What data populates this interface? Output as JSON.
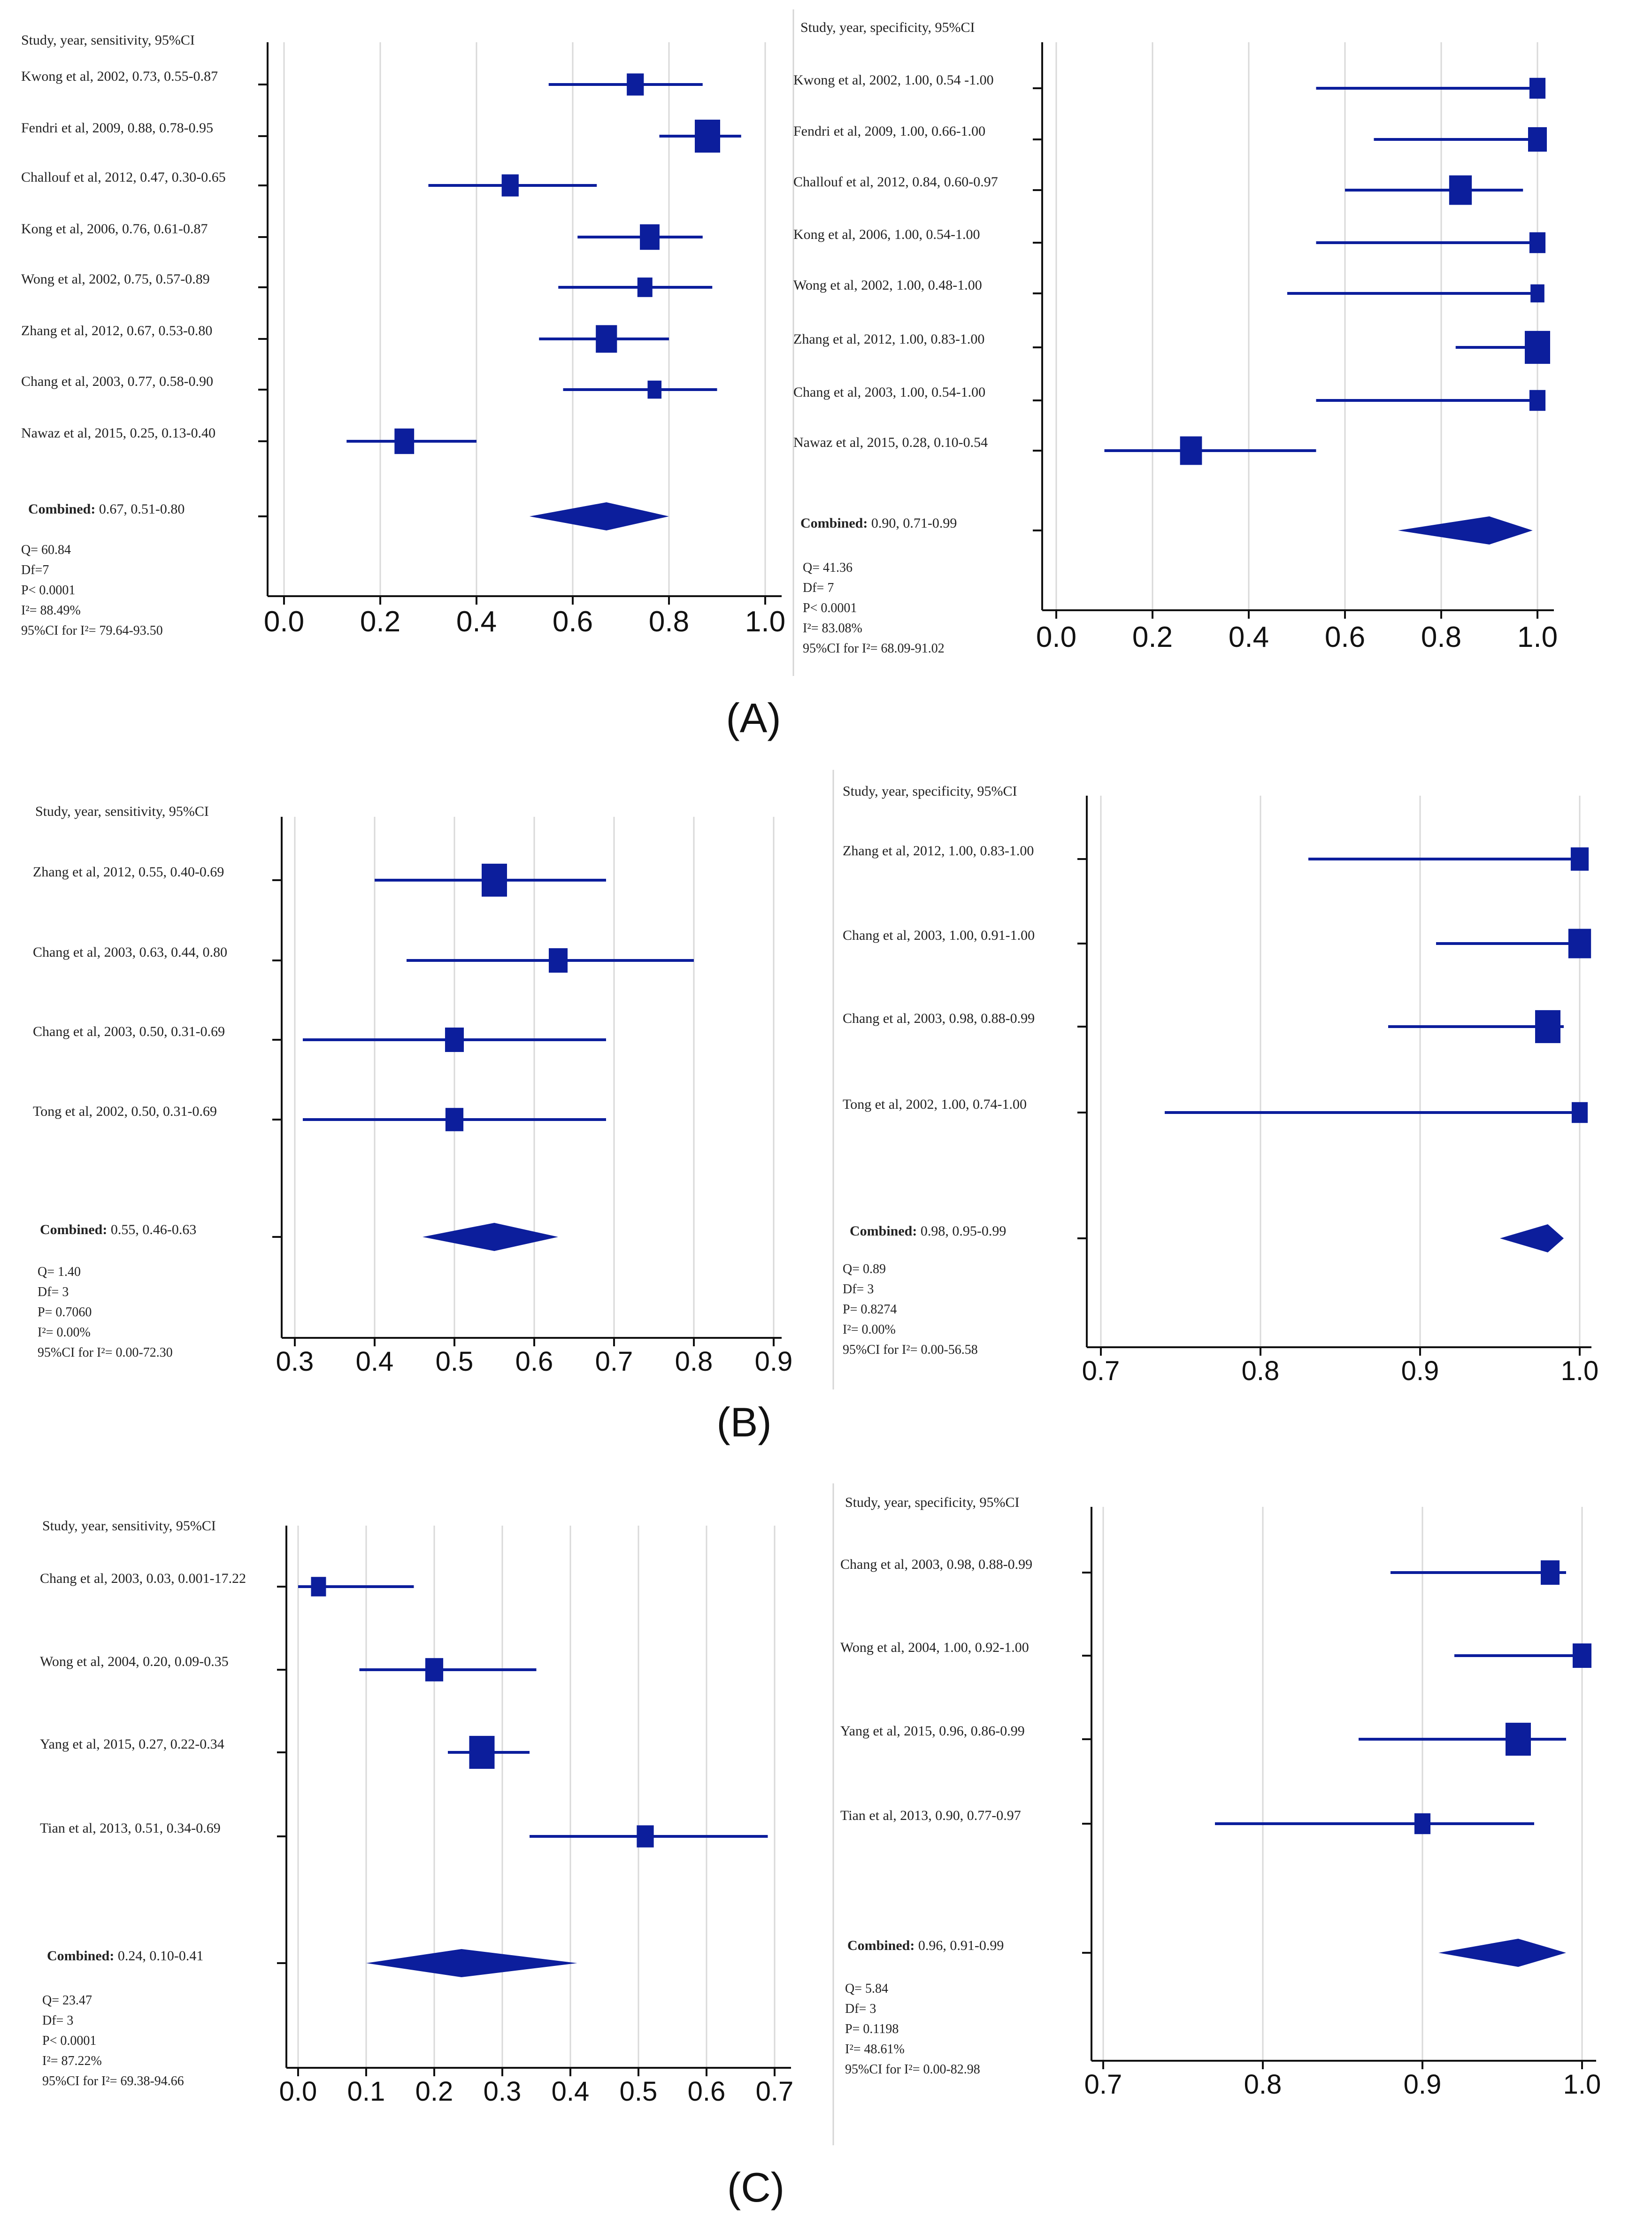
{
  "colors": {
    "mark": "#0c1e9c",
    "axis": "#111111",
    "grid": "#d9d9d9",
    "sep": "#d5d5d5",
    "text": "#222222"
  },
  "captions": [
    "(A)",
    "(B)",
    "(C)"
  ],
  "chart_data": [
    {
      "panel": "A",
      "side": "left",
      "type": "forest",
      "title": "Study, year, sensitivity, 95%CI",
      "xlim": [
        0.0,
        1.0
      ],
      "xticks": [
        0.0,
        0.2,
        0.4,
        0.6,
        0.8,
        1.0
      ],
      "xtick_labels": [
        "0.0",
        "0.2",
        "0.4",
        "0.6",
        "0.8",
        "1.0"
      ],
      "studies": [
        {
          "label": "Kwong et al, 2002, 0.73, 0.55-0.87",
          "est": 0.73,
          "lo": 0.55,
          "hi": 0.87,
          "weight": 0.45
        },
        {
          "label": "Fendri et al, 2009, 0.88, 0.78-0.95",
          "est": 0.88,
          "lo": 0.78,
          "hi": 0.95,
          "weight": 1.0
        },
        {
          "label": "Challouf et al, 2012, 0.47, 0.30-0.65",
          "est": 0.47,
          "lo": 0.3,
          "hi": 0.65,
          "weight": 0.45
        },
        {
          "label": "Kong et al, 2006, 0.76, 0.61-0.87",
          "est": 0.76,
          "lo": 0.61,
          "hi": 0.87,
          "weight": 0.6
        },
        {
          "label": "Wong et al, 2002, 0.75, 0.57-0.89",
          "est": 0.75,
          "lo": 0.57,
          "hi": 0.89,
          "weight": 0.35
        },
        {
          "label": "Zhang et al, 2012, 0.67, 0.53-0.80",
          "est": 0.67,
          "lo": 0.53,
          "hi": 0.8,
          "weight": 0.7
        },
        {
          "label": "Chang et al, 2003, 0.77, 0.58-0.90",
          "est": 0.77,
          "lo": 0.58,
          "hi": 0.9,
          "weight": 0.3
        },
        {
          "label": "Nawaz et al, 2015, 0.25, 0.13-0.40",
          "est": 0.25,
          "lo": 0.13,
          "hi": 0.4,
          "weight": 0.6
        }
      ],
      "combined": {
        "label_bold": "Combined:",
        "label_rest": " 0.67, 0.51-0.80",
        "est": 0.67,
        "lo": 0.51,
        "hi": 0.8
      },
      "stats": [
        "Q= 60.84",
        "Df=7",
        "P< 0.0001",
        "I²= 88.49%",
        "95%CI for I²= 79.64-93.50"
      ]
    },
    {
      "panel": "A",
      "side": "right",
      "type": "forest",
      "title": "Study, year, specificity, 95%CI",
      "xlim": [
        0.0,
        1.0
      ],
      "xticks": [
        0.0,
        0.2,
        0.4,
        0.6,
        0.8,
        1.0
      ],
      "xtick_labels": [
        "0.0",
        "0.2",
        "0.4",
        "0.6",
        "0.8",
        "1.0"
      ],
      "studies": [
        {
          "label": "Kwong et al, 2002, 1.00, 0.54 -1.00",
          "est": 1.0,
          "lo": 0.54,
          "hi": 1.0,
          "weight": 0.4
        },
        {
          "label": "Fendri et al, 2009, 1.00, 0.66-1.00",
          "est": 1.0,
          "lo": 0.66,
          "hi": 1.0,
          "weight": 0.55
        },
        {
          "label": "Challouf et al, 2012, 0.84, 0.60-0.97",
          "est": 0.84,
          "lo": 0.6,
          "hi": 0.97,
          "weight": 0.8
        },
        {
          "label": "Kong et al, 2006, 1.00, 0.54-1.00",
          "est": 1.0,
          "lo": 0.54,
          "hi": 1.0,
          "weight": 0.4
        },
        {
          "label": "Wong et al, 2002, 1.00, 0.48-1.00",
          "est": 1.0,
          "lo": 0.48,
          "hi": 1.0,
          "weight": 0.3
        },
        {
          "label": "Zhang et al, 2012, 1.00, 0.83-1.00",
          "est": 1.0,
          "lo": 0.83,
          "hi": 1.0,
          "weight": 1.0
        },
        {
          "label": "Chang et al, 2003, 1.00, 0.54-1.00",
          "est": 1.0,
          "lo": 0.54,
          "hi": 1.0,
          "weight": 0.4
        },
        {
          "label": "Nawaz et al, 2015, 0.28, 0.10-0.54",
          "est": 0.28,
          "lo": 0.1,
          "hi": 0.54,
          "weight": 0.75
        }
      ],
      "combined": {
        "label_bold": "Combined:",
        "label_rest": " 0.90, 0.71-0.99",
        "est": 0.9,
        "lo": 0.71,
        "hi": 0.99
      },
      "stats": [
        "Q= 41.36",
        "Df= 7",
        "P< 0.0001",
        "I²= 83.08%",
        "95%CI for I²= 68.09-91.02"
      ]
    },
    {
      "panel": "B",
      "side": "left",
      "type": "forest",
      "title": "Study, year, sensitivity, 95%CI",
      "xlim": [
        0.3,
        0.9
      ],
      "xticks": [
        0.3,
        0.4,
        0.5,
        0.6,
        0.7,
        0.8,
        0.9
      ],
      "xtick_labels": [
        "0.3",
        "0.4",
        "0.5",
        "0.6",
        "0.7",
        "0.8",
        "0.9"
      ],
      "studies": [
        {
          "label": "Zhang et al, 2012, 0.55, 0.40-0.69",
          "est": 0.55,
          "lo": 0.4,
          "hi": 0.69,
          "weight": 1.0
        },
        {
          "label": "Chang et al, 2003, 0.63, 0.44, 0.80",
          "est": 0.63,
          "lo": 0.44,
          "hi": 0.8,
          "weight": 0.55
        },
        {
          "label": "Chang et al, 2003, 0.50, 0.31-0.69",
          "est": 0.5,
          "lo": 0.31,
          "hi": 0.69,
          "weight": 0.55
        },
        {
          "label": "Tong et al, 2002, 0.50, 0.31-0.69",
          "est": 0.5,
          "lo": 0.31,
          "hi": 0.69,
          "weight": 0.5
        }
      ],
      "combined": {
        "label_bold": "Combined:",
        "label_rest": " 0.55, 0.46-0.63",
        "est": 0.55,
        "lo": 0.46,
        "hi": 0.63
      },
      "stats": [
        "Q= 1.40",
        "Df= 3",
        "P= 0.7060",
        "I²= 0.00%",
        "95%CI for I²= 0.00-72.30"
      ]
    },
    {
      "panel": "B",
      "side": "right",
      "type": "forest",
      "title": "Study, year, specificity, 95%CI",
      "xlim": [
        0.7,
        1.0
      ],
      "xticks": [
        0.7,
        0.8,
        0.9,
        1.0
      ],
      "xtick_labels": [
        "0.7",
        "0.8",
        "0.9",
        "1.0"
      ],
      "studies": [
        {
          "label": "Zhang et al, 2012, 1.00, 0.83-1.00",
          "est": 1.0,
          "lo": 0.83,
          "hi": 1.0,
          "weight": 0.5
        },
        {
          "label": "Chang et al, 2003, 1.00, 0.91-1.00",
          "est": 1.0,
          "lo": 0.91,
          "hi": 1.0,
          "weight": 0.8
        },
        {
          "label": "Chang et al, 2003, 0.98, 0.88-0.99",
          "est": 0.98,
          "lo": 0.88,
          "hi": 0.99,
          "weight": 1.0
        },
        {
          "label": "Tong et al, 2002, 1.00, 0.74-1.00",
          "est": 1.0,
          "lo": 0.74,
          "hi": 1.0,
          "weight": 0.4
        }
      ],
      "combined": {
        "label_bold": "Combined:",
        "label_rest": " 0.98, 0.95-0.99",
        "est": 0.98,
        "lo": 0.95,
        "hi": 0.99
      },
      "stats": [
        "Q= 0.89",
        "Df= 3",
        "P= 0.8274",
        "I²= 0.00%",
        "95%CI for I²= 0.00-56.58"
      ]
    },
    {
      "panel": "C",
      "side": "left",
      "type": "forest",
      "title": "Study, year, sensitivity, 95%CI",
      "xlim": [
        0.0,
        0.7
      ],
      "xticks": [
        0.0,
        0.1,
        0.2,
        0.3,
        0.4,
        0.5,
        0.6,
        0.7
      ],
      "xtick_labels": [
        "0.0",
        "0.1",
        "0.2",
        "0.3",
        "0.4",
        "0.5",
        "0.6",
        "0.7"
      ],
      "studies": [
        {
          "label": "Chang et al, 2003, 0.03, 0.001-17.22",
          "est": 0.03,
          "lo": 0.0,
          "hi": 0.17,
          "weight": 0.35
        },
        {
          "label": "Wong et al, 2004, 0.20, 0.09-0.35",
          "est": 0.2,
          "lo": 0.09,
          "hi": 0.35,
          "weight": 0.5
        },
        {
          "label": "Yang et al, 2015, 0.27, 0.22-0.34",
          "est": 0.27,
          "lo": 0.22,
          "hi": 0.34,
          "weight": 1.0
        },
        {
          "label": "Tian et al, 2013, 0.51, 0.34-0.69",
          "est": 0.51,
          "lo": 0.34,
          "hi": 0.69,
          "weight": 0.45
        }
      ],
      "combined": {
        "label_bold": "Combined:",
        "label_rest": " 0.24, 0.10-0.41",
        "est": 0.24,
        "lo": 0.1,
        "hi": 0.41
      },
      "stats": [
        "Q= 23.47",
        "Df= 3",
        "P< 0.0001",
        "I²= 87.22%",
        "95%CI for I²= 69.38-94.66"
      ]
    },
    {
      "panel": "C",
      "side": "right",
      "type": "forest",
      "title": "Study, year, specificity, 95%CI",
      "xlim": [
        0.7,
        1.0
      ],
      "xticks": [
        0.7,
        0.8,
        0.9,
        1.0
      ],
      "xtick_labels": [
        "0.7",
        "0.8",
        "0.9",
        "1.0"
      ],
      "studies": [
        {
          "label": "Chang et al, 2003, 0.98, 0.88-0.99",
          "est": 0.98,
          "lo": 0.88,
          "hi": 0.99,
          "weight": 0.55
        },
        {
          "label": "Wong et al, 2004, 1.00, 0.92-1.00",
          "est": 1.0,
          "lo": 0.92,
          "hi": 1.0,
          "weight": 0.55
        },
        {
          "label": "Yang et al, 2015, 0.96, 0.86-0.99",
          "est": 0.96,
          "lo": 0.86,
          "hi": 0.99,
          "weight": 1.0
        },
        {
          "label": "Tian et al, 2013, 0.90, 0.77-0.97",
          "est": 0.9,
          "lo": 0.77,
          "hi": 0.97,
          "weight": 0.4
        }
      ],
      "combined": {
        "label_bold": "Combined:",
        "label_rest": " 0.96, 0.91-0.99",
        "est": 0.96,
        "lo": 0.91,
        "hi": 0.99
      },
      "stats": [
        "Q= 5.84",
        "Df= 3",
        "P= 0.1198",
        "I²= 48.61%",
        "95%CI for I²= 0.00-82.98"
      ]
    }
  ]
}
